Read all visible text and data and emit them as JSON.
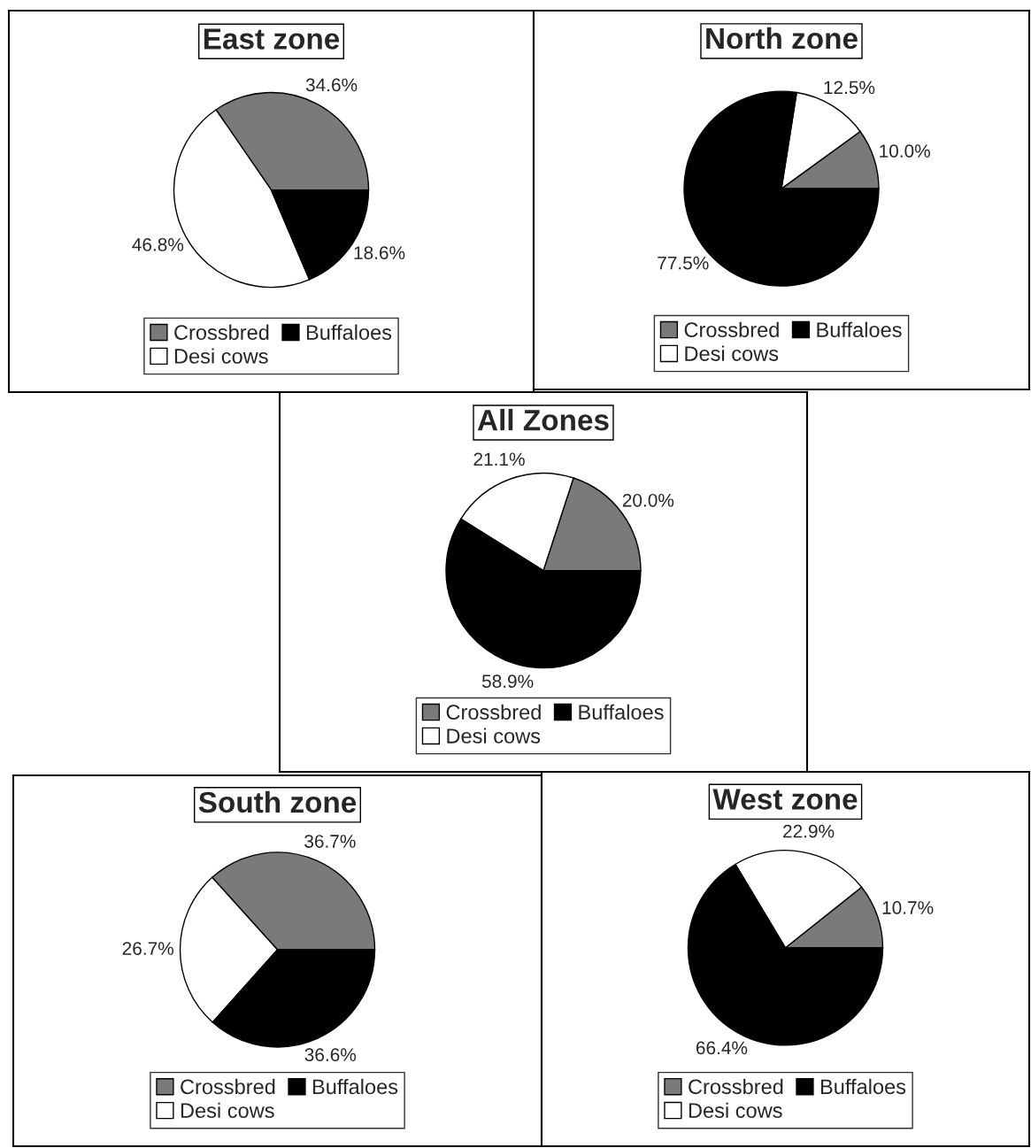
{
  "chart_data": [
    {
      "type": "pie",
      "title": "East zone",
      "categories": [
        "Crossbred",
        "Desi cows",
        "Buffaloes"
      ],
      "values": [
        34.6,
        46.8,
        18.6
      ],
      "value_labels": [
        "34.6%",
        "46.8%",
        "18.6%"
      ],
      "colors": [
        "#7a7a7a",
        "#ffffff",
        "#000000"
      ],
      "legend": "bottom"
    },
    {
      "type": "pie",
      "title": "North zone",
      "categories": [
        "Crossbred",
        "Desi cows",
        "Buffaloes"
      ],
      "values": [
        10.0,
        12.5,
        77.5
      ],
      "value_labels": [
        "10.0%",
        "12.5%",
        "77.5%"
      ],
      "colors": [
        "#7a7a7a",
        "#ffffff",
        "#000000"
      ],
      "legend": "bottom"
    },
    {
      "type": "pie",
      "title": "All Zones",
      "categories": [
        "Crossbred",
        "Desi cows",
        "Buffaloes"
      ],
      "values": [
        20.0,
        21.1,
        58.9
      ],
      "value_labels": [
        "20.0%",
        "21.1%",
        "58.9%"
      ],
      "colors": [
        "#7a7a7a",
        "#ffffff",
        "#000000"
      ],
      "legend": "bottom"
    },
    {
      "type": "pie",
      "title": "South zone",
      "categories": [
        "Crossbred",
        "Desi cows",
        "Buffaloes"
      ],
      "values": [
        36.7,
        26.7,
        36.6
      ],
      "value_labels": [
        "36.7%",
        "26.7%",
        "36.6%"
      ],
      "colors": [
        "#7a7a7a",
        "#ffffff",
        "#000000"
      ],
      "legend": "bottom"
    },
    {
      "type": "pie",
      "title": "West zone",
      "categories": [
        "Crossbred",
        "Desi cows",
        "Buffaloes"
      ],
      "values": [
        10.7,
        22.9,
        66.4
      ],
      "value_labels": [
        "10.7%",
        "22.9%",
        "66.4%"
      ],
      "colors": [
        "#7a7a7a",
        "#ffffff",
        "#000000"
      ],
      "legend": "bottom"
    }
  ]
}
